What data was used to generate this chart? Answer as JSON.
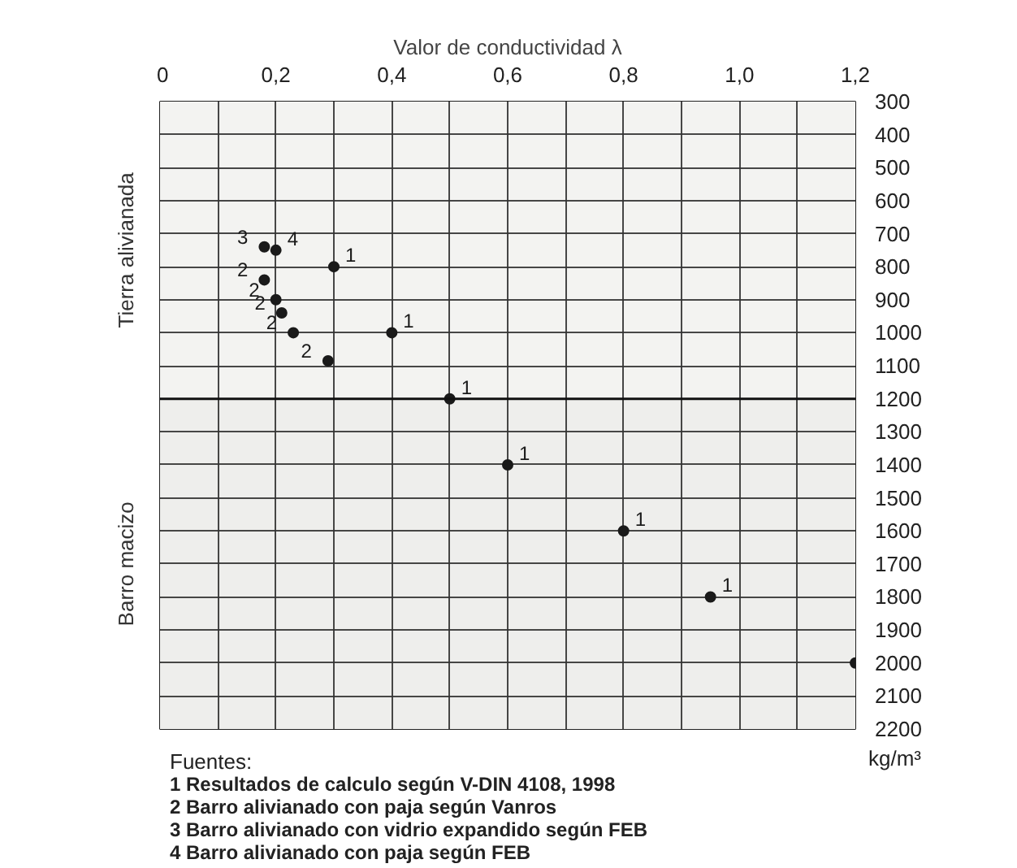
{
  "chart_data": {
    "type": "scatter",
    "xlabel": "Valor de conductividad λ",
    "ylabel": "kg/m³",
    "xlim": [
      0,
      1.2
    ],
    "xticks": [
      0,
      {
        "value": 0.1,
        "label": null
      },
      {
        "value": 0.2,
        "label": "0,2"
      },
      {
        "value": 0.3,
        "label": null
      },
      {
        "value": 0.4,
        "label": "0,4"
      },
      {
        "value": 0.5,
        "label": null
      },
      {
        "value": 0.6,
        "label": "0,6"
      },
      {
        "value": 0.7,
        "label": null
      },
      {
        "value": 0.8,
        "label": "0,8"
      },
      {
        "value": 0.9,
        "label": null
      },
      {
        "value": 1.0,
        "label": "1,0"
      },
      {
        "value": 1.1,
        "label": null
      },
      {
        "value": 1.2,
        "label": "1,2"
      }
    ],
    "ylim": [
      2200,
      300
    ],
    "yticks": [
      300,
      400,
      500,
      600,
      700,
      800,
      900,
      1000,
      1100,
      1200,
      1300,
      1400,
      1500,
      1600,
      1700,
      1800,
      1900,
      2000,
      2100,
      2200
    ],
    "grid": true,
    "marker": "circle",
    "series": [
      {
        "name": "1",
        "color": "#1a1a1a",
        "x": [
          0.3,
          0.4,
          0.5,
          0.6,
          0.8,
          0.95,
          1.2
        ],
        "values": [
          800,
          1000,
          1200,
          1400,
          1600,
          1800,
          2000
        ]
      },
      {
        "name": "2",
        "color": "#1a1a1a",
        "x": [
          0.18,
          0.2,
          0.21,
          0.23,
          0.29
        ],
        "values": [
          840,
          900,
          940,
          1000,
          1085
        ]
      },
      {
        "name": "3",
        "color": "#1a1a1a",
        "x": [
          0.18
        ],
        "values": [
          740
        ]
      },
      {
        "name": "4",
        "color": "#1a1a1a",
        "x": [
          0.2
        ],
        "values": [
          750
        ]
      }
    ],
    "ref_lines": [
      {
        "axis": "y",
        "value": 1200
      }
    ],
    "bands": [
      {
        "axis": "y",
        "from": 300,
        "to": 1200,
        "label": "Tierra alivianada",
        "color": "#f3f3f1"
      },
      {
        "axis": "y",
        "from": 1200,
        "to": 2200,
        "label": "Barro macizo",
        "color": "#eeeeec"
      }
    ],
    "annotations": [
      "Fuentes:",
      "1  Resultados de calculo según V-DIN 4108, 1998",
      "2  Barro alivianado con paja según Vanros",
      "3  Barro alivianado con vidrio expandido según FEB",
      "4  Barro alivianado con paja según FEB"
    ]
  }
}
